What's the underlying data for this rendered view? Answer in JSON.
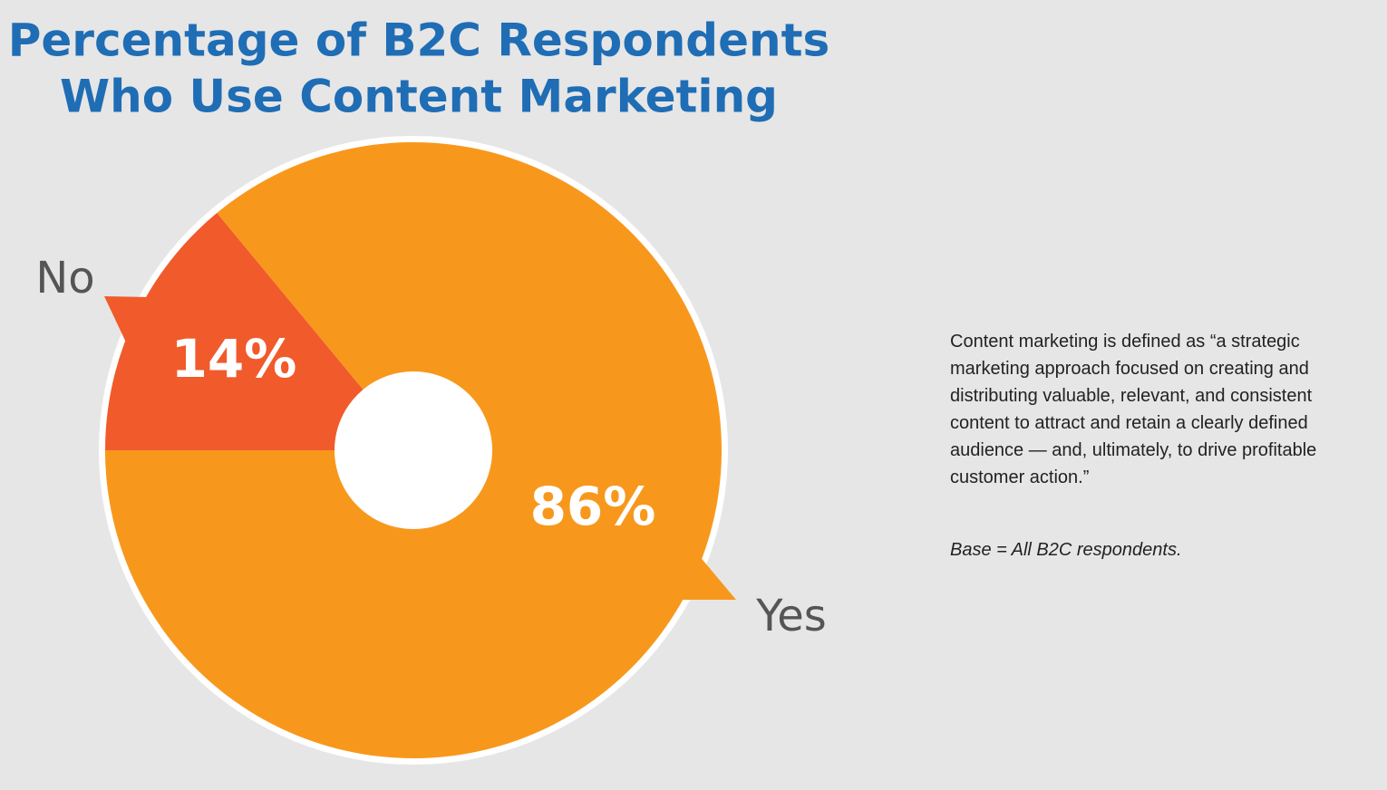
{
  "chart_data": {
    "type": "pie",
    "title": [
      "Percentage of B2C Respondents",
      "Who Use Content Marketing"
    ],
    "categories": [
      "No",
      "Yes"
    ],
    "values": [
      14,
      86
    ],
    "value_labels": [
      "14%",
      "86%"
    ],
    "colors": [
      "#f15a2b",
      "#f7981d"
    ]
  },
  "notes": {
    "definition": "Content marketing is defined as “a strategic marketing approach focused on creating and distributing valuable, relevant, and consistent content to attract and retain a clearly defined audience — and, ultimately, to drive profitable customer action.”",
    "base": "Base = All B2C respondents."
  }
}
